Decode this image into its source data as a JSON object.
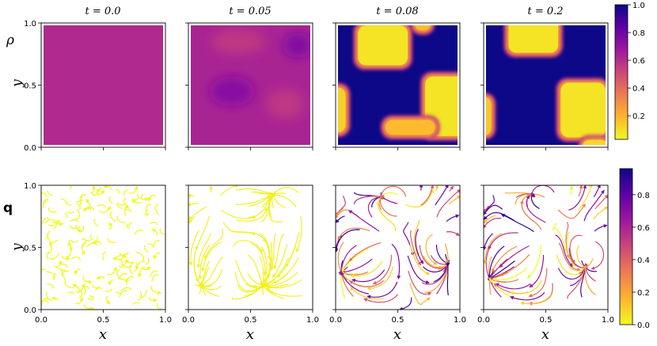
{
  "chart_data": {
    "type": "heatmap",
    "time_titles": [
      "t = 0.0",
      "t = 0.05",
      "t = 0.08",
      "t = 0.2"
    ],
    "row_labels": [
      "ρ",
      "q"
    ],
    "axis_labels": {
      "xlabel": "x",
      "ylabel": "y"
    },
    "axis_ticks": [
      "0.0",
      "0.5",
      "1.0"
    ],
    "xlim": [
      0.0,
      1.0
    ],
    "ylim": [
      0.0,
      1.0
    ],
    "colormap": "plasma",
    "colormap_stops": [
      "#0d0887",
      "#5c01a6",
      "#9c179e",
      "#cc4778",
      "#ed7953",
      "#fdb42f",
      "#f0f921"
    ],
    "rho_colorbar": {
      "ticks": [
        "0.2",
        "0.4",
        "0.6",
        "0.8",
        "1.0"
      ],
      "tick_values": [
        0.2,
        0.4,
        0.6,
        0.8,
        1.0
      ],
      "range": [
        0.03,
        1.0
      ]
    },
    "q_colorbar": {
      "ticks": [
        "0.0",
        "0.2",
        "0.4",
        "0.6",
        "0.8"
      ],
      "tick_values": [
        0.0,
        0.2,
        0.4,
        0.6,
        0.8
      ],
      "range": [
        0.0,
        0.96
      ]
    },
    "rho_panels": [
      {
        "t": "0.0",
        "background_value": 0.6,
        "regions": []
      },
      {
        "t": "0.05",
        "background_value": 0.62,
        "regions": [
          {
            "shape": "blob",
            "cx": 0.35,
            "cy": 0.45,
            "rx": 0.18,
            "ry": 0.12,
            "value": 0.72
          },
          {
            "shape": "blob",
            "cx": 0.88,
            "cy": 0.82,
            "rx": 0.12,
            "ry": 0.1,
            "value": 0.74
          },
          {
            "shape": "blob",
            "cx": 0.4,
            "cy": 0.85,
            "rx": 0.22,
            "ry": 0.1,
            "value": 0.55
          },
          {
            "shape": "blob",
            "cx": 0.78,
            "cy": 0.35,
            "rx": 0.15,
            "ry": 0.12,
            "value": 0.55
          }
        ]
      },
      {
        "t": "0.08",
        "background_value": 1.0,
        "regions": [
          {
            "shape": "cluster",
            "cx": 0.38,
            "cy": 0.82,
            "rx": 0.2,
            "ry": 0.16,
            "value": 0.05
          },
          {
            "shape": "cluster",
            "cx": 0.88,
            "cy": 0.33,
            "rx": 0.16,
            "ry": 0.24,
            "value": 0.05
          },
          {
            "shape": "cluster",
            "cx": 0.02,
            "cy": 0.3,
            "rx": 0.06,
            "ry": 0.18,
            "value": 0.1
          },
          {
            "shape": "cluster",
            "cx": 0.7,
            "cy": 0.98,
            "rx": 0.06,
            "ry": 0.04,
            "value": 0.15
          },
          {
            "shape": "cluster",
            "cx": 0.6,
            "cy": 0.16,
            "rx": 0.2,
            "ry": 0.06,
            "value": 0.15
          }
        ]
      },
      {
        "t": "0.2",
        "background_value": 1.0,
        "regions": [
          {
            "shape": "cluster",
            "cx": 0.4,
            "cy": 0.9,
            "rx": 0.2,
            "ry": 0.14,
            "value": 0.05
          },
          {
            "shape": "cluster",
            "cx": 0.8,
            "cy": 0.3,
            "rx": 0.18,
            "ry": 0.22,
            "value": 0.05
          },
          {
            "shape": "cluster",
            "cx": 0.02,
            "cy": 0.25,
            "rx": 0.04,
            "ry": 0.15,
            "value": 0.12
          },
          {
            "shape": "cluster",
            "cx": 0.9,
            "cy": 0.02,
            "rx": 0.1,
            "ry": 0.04,
            "value": 0.08
          }
        ]
      }
    ],
    "q_panels": [
      {
        "t": "0.0",
        "style": "random",
        "magnitude": 0.0
      },
      {
        "t": "0.05",
        "style": "field",
        "magnitude": 0.02,
        "sources": [
          [
            0.35,
            0.45
          ],
          [
            0.88,
            0.8
          ],
          [
            0.2,
            0.85
          ]
        ],
        "sinks": [
          [
            0.68,
            0.92
          ],
          [
            0.6,
            0.2
          ],
          [
            0.1,
            0.2
          ]
        ]
      },
      {
        "t": "0.08",
        "style": "field",
        "magnitude_range": [
          0.0,
          0.96
        ],
        "sources": [
          [
            0.4,
            0.55
          ],
          [
            0.55,
            0.85
          ],
          [
            0.85,
            0.6
          ]
        ],
        "sinks": [
          [
            0.38,
            0.9
          ],
          [
            0.9,
            0.38
          ],
          [
            0.05,
            0.3
          ]
        ]
      },
      {
        "t": "0.2",
        "style": "field",
        "magnitude_range": [
          0.0,
          0.96
        ],
        "sources": [
          [
            0.45,
            0.55
          ],
          [
            0.55,
            0.85
          ],
          [
            0.85,
            0.55
          ]
        ],
        "sinks": [
          [
            0.4,
            0.92
          ],
          [
            0.82,
            0.35
          ],
          [
            0.05,
            0.25
          ]
        ]
      }
    ]
  }
}
